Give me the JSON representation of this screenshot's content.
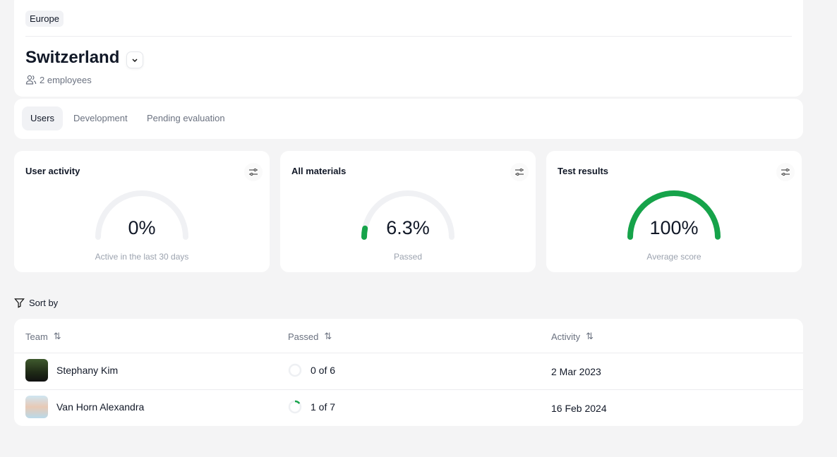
{
  "header": {
    "region": "Europe",
    "title": "Switzerland",
    "employees": "2 employees"
  },
  "tabs": [
    {
      "label": "Users",
      "active": true
    },
    {
      "label": "Development"
    },
    {
      "label": "Pending evaluation"
    }
  ],
  "stats": [
    {
      "title": "User activity",
      "value": "0%",
      "percent": 0,
      "subtitle": "Active in the last 30 days"
    },
    {
      "title": "All materials",
      "value": "6.3%",
      "percent": 6.3,
      "subtitle": "Passed"
    },
    {
      "title": "Test results",
      "value": "100%",
      "percent": 100,
      "subtitle": "Average score"
    }
  ],
  "accent": "#16a34a",
  "sort_label": "Sort by",
  "table": {
    "columns": [
      "Team",
      "Passed",
      "Activity"
    ],
    "rows": [
      {
        "name": "Stephany Kim",
        "passed": "0 of 6",
        "done": 0,
        "total": 6,
        "activity": "2 Mar 2023"
      },
      {
        "name": "Van Horn Alexandra",
        "passed": "1 of 7",
        "done": 1,
        "total": 7,
        "activity": "16 Feb 2024"
      }
    ]
  }
}
